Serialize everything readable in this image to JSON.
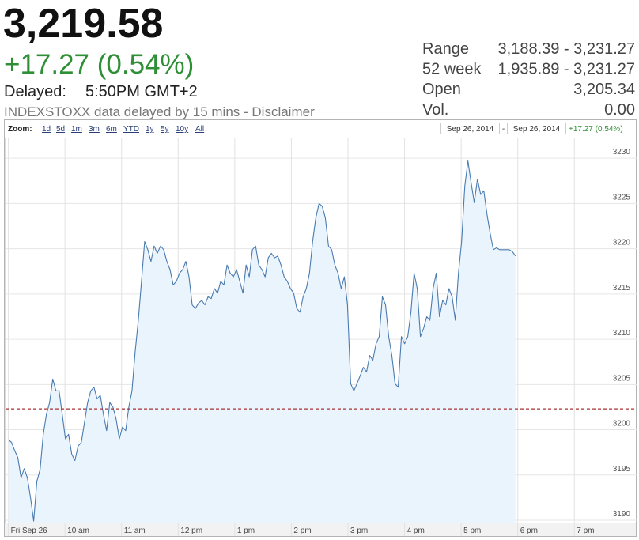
{
  "quote": {
    "price": "3,219.58",
    "change": "+17.27 (0.54%)",
    "delayed_label": "Delayed:",
    "delayed_time": "5:50PM GMT+2",
    "note": "INDEXSTOXX data delayed by 15 mins - Disclaimer",
    "stats": [
      {
        "label": "Range",
        "value": "3,188.39 - 3,231.27"
      },
      {
        "label": "52 week",
        "value": "1,935.89 - 3,231.27"
      },
      {
        "label": "Open",
        "value": "3,205.34"
      },
      {
        "label": "Vol.",
        "value": "0.00"
      }
    ]
  },
  "chart_data": {
    "type": "area",
    "zoom_label": "Zoom:",
    "zoom_options": [
      "1d",
      "5d",
      "1m",
      "3m",
      "6m",
      "YTD",
      "1y",
      "5y",
      "10y",
      "All"
    ],
    "date_range": [
      "Sep 26, 2014",
      "Sep 26, 2014"
    ],
    "date_separator": "-",
    "range_change": "+17.27 (0.54%)",
    "color": "#4a7bb0",
    "fill_color": "#eaf4fd",
    "grid": true,
    "reference_line": {
      "value": 3202.31,
      "color": "#a83232"
    },
    "xlim": [
      8.95,
      20.1
    ],
    "xticks": [
      {
        "value": 9,
        "label": "Fri Sep 26"
      },
      {
        "value": 10,
        "label": "10 am"
      },
      {
        "value": 11,
        "label": "11 am"
      },
      {
        "value": 12,
        "label": "12 pm"
      },
      {
        "value": 13,
        "label": "1 pm"
      },
      {
        "value": 14,
        "label": "2 pm"
      },
      {
        "value": 15,
        "label": "3 pm"
      },
      {
        "value": 16,
        "label": "4 pm"
      },
      {
        "value": 17,
        "label": "5 pm"
      },
      {
        "value": 18,
        "label": "6 pm"
      },
      {
        "value": 19,
        "label": "7 pm"
      }
    ],
    "ylim": [
      3189.65,
      3232.2
    ],
    "yticks": [
      3190,
      3195,
      3200,
      3205,
      3210,
      3215,
      3220,
      3225,
      3230
    ],
    "x": [
      9,
      9.056,
      9.112,
      9.168,
      9.224,
      9.28,
      9.336,
      9.392,
      9.448,
      9.504,
      9.56,
      9.616,
      9.672,
      9.728,
      9.784,
      9.84,
      9.896,
      9.952,
      10.008,
      10.064,
      10.12,
      10.176,
      10.232,
      10.288,
      10.344,
      10.4,
      10.456,
      10.512,
      10.568,
      10.624,
      10.68,
      10.736,
      10.792,
      10.848,
      10.904,
      10.96,
      11.016,
      11.072,
      11.128,
      11.184,
      11.24,
      11.296,
      11.352,
      11.408,
      11.464,
      11.52,
      11.576,
      11.632,
      11.688,
      11.744,
      11.8,
      11.856,
      11.912,
      11.968,
      12.024,
      12.08,
      12.136,
      12.192,
      12.248,
      12.304,
      12.36,
      12.416,
      12.472,
      12.528,
      12.584,
      12.64,
      12.696,
      12.752,
      12.808,
      12.864,
      12.92,
      12.976,
      13.032,
      13.088,
      13.144,
      13.2,
      13.256,
      13.312,
      13.368,
      13.424,
      13.48,
      13.536,
      13.592,
      13.648,
      13.704,
      13.76,
      13.816,
      13.872,
      13.928,
      13.984,
      14.04,
      14.096,
      14.152,
      14.208,
      14.264,
      14.32,
      14.376,
      14.432,
      14.488,
      14.544,
      14.6,
      14.656,
      14.712,
      14.768,
      14.824,
      14.88,
      14.936,
      14.992,
      15.048,
      15.104,
      15.16,
      15.216,
      15.272,
      15.328,
      15.384,
      15.44,
      15.496,
      15.552,
      15.608,
      15.664,
      15.72,
      15.776,
      15.832,
      15.888,
      15.944,
      16,
      16.056,
      16.112,
      16.168,
      16.224,
      16.28,
      16.336,
      16.392,
      16.448,
      16.504,
      16.56,
      16.616,
      16.672,
      16.728,
      16.784,
      16.84,
      16.896,
      16.952,
      17.008,
      17.064,
      17.12,
      17.176,
      17.232,
      17.288,
      17.344,
      17.4,
      17.456,
      17.512,
      17.568,
      17.624,
      17.68,
      17.736,
      17.792,
      17.848,
      17.904,
      17.96
    ],
    "values": [
      3198.9,
      3198.6,
      3197.7,
      3196.9,
      3194.7,
      3195.7,
      3194.7,
      3192.5,
      3189.9,
      3194.3,
      3195.6,
      3199.5,
      3201.7,
      3203.0,
      3205.6,
      3204.3,
      3204.3,
      3201.7,
      3199.0,
      3199.5,
      3197.3,
      3196.6,
      3198.2,
      3198.6,
      3200.8,
      3203.0,
      3204.3,
      3204.7,
      3203.4,
      3203.8,
      3201.7,
      3199.9,
      3203.0,
      3202.5,
      3201.2,
      3199.0,
      3200.3,
      3199.9,
      3202.5,
      3204.3,
      3208.6,
      3212.1,
      3216.4,
      3220.8,
      3219.9,
      3218.6,
      3220.3,
      3219.5,
      3220.3,
      3219.9,
      3218.6,
      3217.7,
      3216.0,
      3216.4,
      3217.3,
      3217.7,
      3218.6,
      3216.9,
      3213.8,
      3213.4,
      3214.0,
      3214.3,
      3213.8,
      3214.7,
      3214.5,
      3215.6,
      3215.1,
      3216.4,
      3216.0,
      3218.2,
      3217.3,
      3216.9,
      3217.7,
      3216.4,
      3215.1,
      3218.2,
      3216.9,
      3219.9,
      3220.3,
      3218.2,
      3217.7,
      3216.9,
      3219.0,
      3219.5,
      3219.0,
      3219.2,
      3218.2,
      3216.9,
      3216.4,
      3215.6,
      3215.1,
      3213.4,
      3213.0,
      3214.7,
      3215.6,
      3217.3,
      3220.8,
      3223.4,
      3225.0,
      3224.7,
      3223.4,
      3220.3,
      3219.9,
      3218.2,
      3217.3,
      3215.6,
      3216.9,
      3213.8,
      3205.1,
      3204.3,
      3205.1,
      3206.0,
      3206.9,
      3206.4,
      3208.2,
      3207.7,
      3209.5,
      3210.3,
      3214.7,
      3213.8,
      3210.3,
      3208.2,
      3205.1,
      3204.7,
      3210.3,
      3209.5,
      3210.3,
      3213.0,
      3217.3,
      3215.6,
      3210.3,
      3211.2,
      3212.5,
      3212.1,
      3215.6,
      3217.3,
      3212.5,
      3214.3,
      3213.8,
      3215.6,
      3214.7,
      3212.1,
      3217.3,
      3220.8,
      3226.9,
      3229.7,
      3227.3,
      3225.1,
      3227.7,
      3226.0,
      3226.4,
      3223.8,
      3221.7,
      3219.9,
      3220.1,
      3219.9,
      3219.9,
      3219.9,
      3219.9,
      3219.7,
      3219.2
    ]
  }
}
